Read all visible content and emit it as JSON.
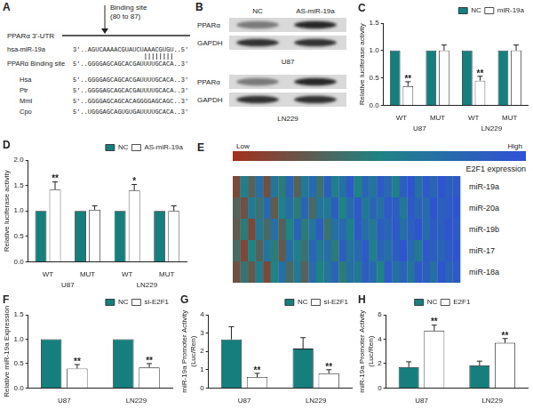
{
  "panel_A": {
    "label": "A",
    "utr_label": "PPARα 3'-UTR",
    "binding_site_label": [
      "Binding site",
      "(80 to 87)"
    ],
    "rows": [
      {
        "name": "hsa-miR-19a",
        "sequence": "3'..AGUCAAAACGUAUCUAAACGUGU..5'"
      },
      {
        "name": "PPARα Binding site",
        "sequence": "5'..GGGGAGCAGCACGAUUUUGCACA..3'"
      },
      {
        "name": "Hsa",
        "sequence": "5'..GGGGAGCAGCACGAUUUUGCACA..3'"
      },
      {
        "name": "Ptr",
        "sequence": "5'..GGGGAGCAGCACGAUUUUGCACA..3'"
      },
      {
        "name": "Mml",
        "sequence": "5'..GGGGAGCAGCACAGGGGAGCAGC..3'"
      },
      {
        "name": "Cpo",
        "sequence": "5'..UGGGAGCAGUGUGAUUUUGCACA..3'"
      }
    ]
  },
  "panel_B": {
    "label": "B",
    "lanes": [
      "NC",
      "AS-miR-19a"
    ],
    "blots": [
      {
        "cell": "U87",
        "rows": [
          "PPARα",
          "GAPDH"
        ]
      },
      {
        "cell": "LN229",
        "rows": [
          "PPARα",
          "GAPDH"
        ]
      }
    ]
  },
  "panel_E": {
    "label": "E",
    "colorbar": {
      "low": "Low",
      "high": "High",
      "title": "E2F1 expression",
      "range": [
        0,
        1
      ],
      "colors": [
        "#a3301c",
        "#1f8383",
        "#3150d6"
      ]
    },
    "rows": [
      {
        "name": "miR-19a",
        "values": [
          0.15,
          0.55,
          0.3,
          0.7,
          0.2,
          0.65,
          0.45,
          0.8,
          0.3,
          0.6,
          0.75,
          0.4,
          0.85,
          0.55,
          0.7,
          0.9,
          0.5,
          0.8,
          0.65,
          0.9,
          0.75,
          0.55,
          0.85,
          0.95,
          0.7,
          0.9,
          0.8,
          0.95,
          0.85,
          0.9
        ]
      },
      {
        "name": "miR-20a",
        "values": [
          0.3,
          0.2,
          0.6,
          0.4,
          0.75,
          0.25,
          0.55,
          0.7,
          0.45,
          0.8,
          0.35,
          0.65,
          0.6,
          0.85,
          0.5,
          0.75,
          0.9,
          0.6,
          0.8,
          0.7,
          0.9,
          0.85,
          0.6,
          0.9,
          0.8,
          0.75,
          0.95,
          0.85,
          0.9,
          0.95
        ]
      },
      {
        "name": "miR-19b",
        "values": [
          0.25,
          0.45,
          0.15,
          0.6,
          0.35,
          0.7,
          0.3,
          0.5,
          0.8,
          0.45,
          0.65,
          0.85,
          0.4,
          0.7,
          0.75,
          0.55,
          0.9,
          0.7,
          0.6,
          0.85,
          0.8,
          0.9,
          0.7,
          0.85,
          0.95,
          0.75,
          0.9,
          0.85,
          0.95,
          0.9
        ]
      },
      {
        "name": "miR-17",
        "values": [
          0.35,
          0.15,
          0.5,
          0.3,
          0.65,
          0.45,
          0.25,
          0.7,
          0.55,
          0.4,
          0.8,
          0.6,
          0.7,
          0.45,
          0.85,
          0.65,
          0.75,
          0.9,
          0.55,
          0.8,
          0.7,
          0.85,
          0.95,
          0.75,
          0.6,
          0.9,
          0.85,
          0.8,
          0.9,
          0.95
        ]
      },
      {
        "name": "miR-18a",
        "values": [
          0.2,
          0.4,
          0.25,
          0.55,
          0.15,
          0.5,
          0.7,
          0.35,
          0.6,
          0.3,
          0.75,
          0.5,
          0.65,
          0.8,
          0.45,
          0.7,
          0.6,
          0.85,
          0.75,
          0.5,
          0.9,
          0.7,
          0.8,
          0.65,
          0.9,
          0.85,
          0.7,
          0.95,
          0.8,
          0.9
        ]
      }
    ]
  },
  "chart_data": [
    {
      "panel": "C",
      "type": "bar",
      "categories": [
        "WT",
        "MUT",
        "WT",
        "MUT"
      ],
      "group_labels": [
        "U87",
        "LN229"
      ],
      "y_label": "Relative luciferase activity",
      "ylim": [
        0,
        1.5
      ],
      "yticks": [
        {
          "value": 0,
          "label": "0.0"
        },
        {
          "value": 0.5,
          "label": "0.5"
        },
        {
          "value": 1,
          "label": "1.0"
        },
        {
          "value": 1.5,
          "label": "1.5"
        }
      ],
      "grid": false,
      "legend": "top-right",
      "series": [
        {
          "name": "NC",
          "color": "#167e7c",
          "values": [
            1,
            1,
            1,
            1
          ]
        },
        {
          "name": "miR-19a",
          "color": "#ffffff",
          "values": [
            0.35,
            1.0,
            0.45,
            1.0
          ],
          "errors": [
            0.08,
            0.1,
            0.08,
            0.1
          ],
          "annotations": [
            "**",
            null,
            "**",
            null
          ]
        }
      ]
    },
    {
      "panel": "D",
      "type": "bar",
      "categories": [
        "WT",
        "MUT",
        "WT",
        "MUT"
      ],
      "group_labels": [
        "U87",
        "LN229"
      ],
      "y_label": "Relative luciferase activity",
      "ylim": [
        0,
        2
      ],
      "yticks": [
        {
          "value": 0,
          "label": "0.0"
        },
        {
          "value": 0.5,
          "label": "0.5"
        },
        {
          "value": 1,
          "label": "1.0"
        },
        {
          "value": 1.5,
          "label": "1.5"
        },
        {
          "value": 2,
          "label": "2.0"
        }
      ],
      "grid": false,
      "legend": "top-right",
      "series": [
        {
          "name": "NC",
          "color": "#167e7c",
          "values": [
            1,
            1,
            1,
            1
          ]
        },
        {
          "name": "AS-miR-19a",
          "color": "#ffffff",
          "values": [
            1.42,
            1.02,
            1.4,
            1.0
          ],
          "errors": [
            0.15,
            0.08,
            0.12,
            0.1
          ],
          "annotations": [
            "**",
            null,
            "*",
            null
          ]
        }
      ]
    },
    {
      "panel": "F",
      "type": "bar",
      "categories": [
        "U87",
        "LN229"
      ],
      "y_label": "Relative miR-19a Expression",
      "ylim": [
        0,
        1.5
      ],
      "yticks": [
        {
          "value": 0,
          "label": "0.0"
        },
        {
          "value": 0.5,
          "label": "0.5"
        },
        {
          "value": 1,
          "label": "1.0"
        },
        {
          "value": 1.5,
          "label": "1.5"
        }
      ],
      "grid": false,
      "legend": "top-right",
      "series": [
        {
          "name": "NC",
          "color": "#167e7c",
          "values": [
            1,
            1
          ]
        },
        {
          "name": "si-E2F1",
          "color": "#ffffff",
          "values": [
            0.4,
            0.42
          ],
          "errors": [
            0.08,
            0.08
          ],
          "annotations": [
            "**",
            "**"
          ]
        }
      ]
    },
    {
      "panel": "G",
      "type": "bar",
      "categories": [
        "U87",
        "LN229"
      ],
      "y_label": [
        "miR-19a Promoter Activity",
        "(Luc/Ren)"
      ],
      "ylim": [
        0,
        4
      ],
      "yticks": [
        0,
        1,
        2,
        3,
        4
      ],
      "grid": false,
      "legend": "top-right",
      "series": [
        {
          "name": "NC",
          "color": "#167e7c",
          "values": [
            2.65,
            2.15
          ],
          "errors": [
            0.7,
            0.6
          ]
        },
        {
          "name": "si-E2F1",
          "color": "#ffffff",
          "values": [
            0.6,
            0.8
          ],
          "errors": [
            0.2,
            0.2
          ],
          "annotations": [
            "**",
            "**"
          ]
        }
      ]
    },
    {
      "panel": "H",
      "type": "bar",
      "categories": [
        "U87",
        "LN229"
      ],
      "y_label": [
        "miR-19a Promoter Activity",
        "(Luc/Ren)"
      ],
      "ylim": [
        0,
        6
      ],
      "yticks": [
        0,
        2,
        4,
        6
      ],
      "grid": false,
      "legend": "top-left",
      "series": [
        {
          "name": "NC",
          "color": "#167e7c",
          "values": [
            1.7,
            1.85
          ],
          "errors": [
            0.45,
            0.35
          ]
        },
        {
          "name": "E2F1",
          "color": "#ffffff",
          "values": [
            4.7,
            3.7
          ],
          "errors": [
            0.45,
            0.35
          ],
          "annotations": [
            "**",
            "**"
          ]
        }
      ]
    }
  ]
}
